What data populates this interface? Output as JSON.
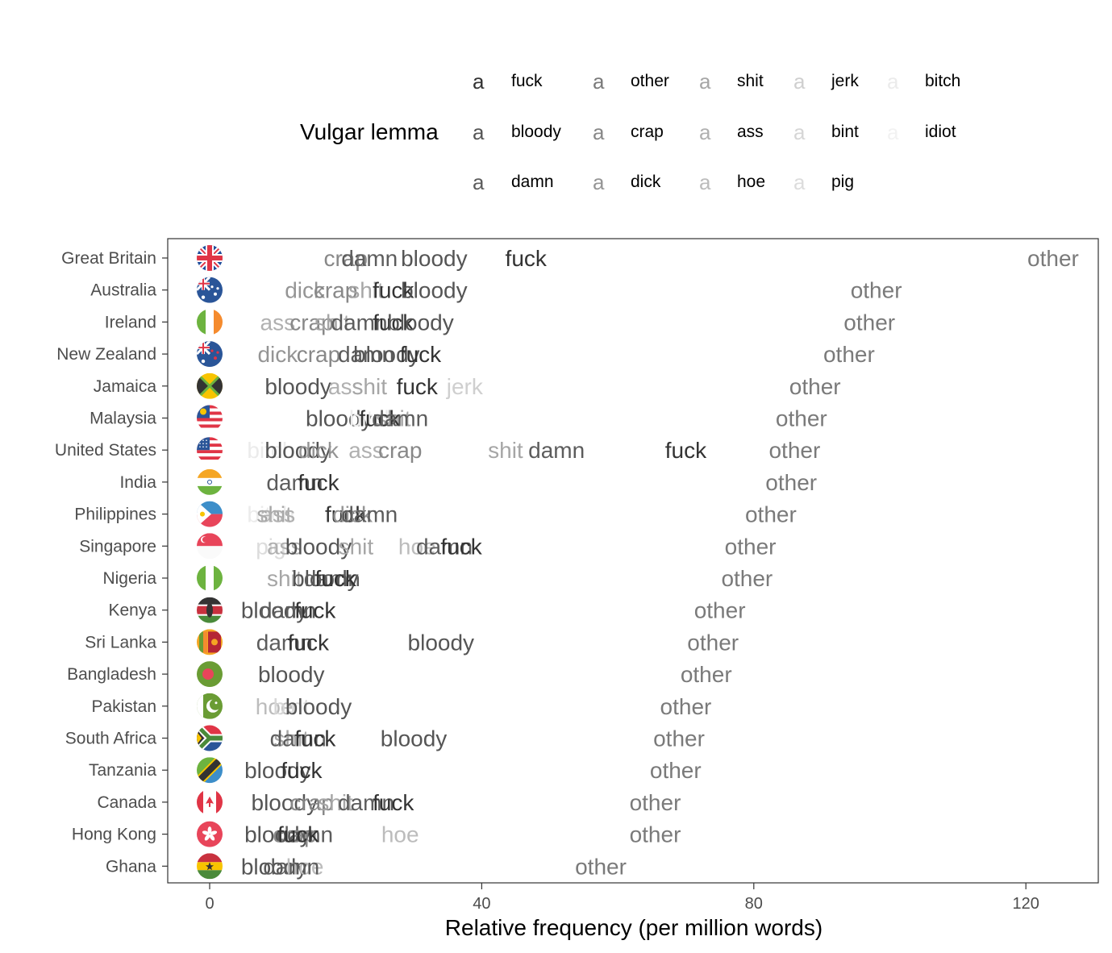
{
  "legend": {
    "title": "Vulgar lemma",
    "key_glyph": "a",
    "items": [
      {
        "label": "fuck",
        "color": "#333333"
      },
      {
        "label": "bloody",
        "color": "#555555"
      },
      {
        "label": "damn",
        "color": "#5c5c5c"
      },
      {
        "label": "other",
        "color": "#7a7a7a"
      },
      {
        "label": "crap",
        "color": "#888888"
      },
      {
        "label": "dick",
        "color": "#959595"
      },
      {
        "label": "shit",
        "color": "#a6a6a6"
      },
      {
        "label": "ass",
        "color": "#b0b0b0"
      },
      {
        "label": "hoe",
        "color": "#bcbcbc"
      },
      {
        "label": "jerk",
        "color": "#cfcfcf"
      },
      {
        "label": "bint",
        "color": "#d6d6d6"
      },
      {
        "label": "pig",
        "color": "#dcdcdc"
      },
      {
        "label": "bitch",
        "color": "#ebebeb"
      },
      {
        "label": "idiot",
        "color": "#f2f2f2"
      }
    ]
  },
  "chart_data": {
    "type": "scatter",
    "xlabel": "Relative frequency (per million words)",
    "ylabel": "",
    "xlim": [
      -6,
      131
    ],
    "xticks": [
      0,
      40,
      80,
      120
    ],
    "grid": false,
    "legend_position": "top",
    "countries": [
      {
        "name": "Great Britain",
        "flag": "gb",
        "points": [
          {
            "lemma": "crap",
            "x": 20
          },
          {
            "lemma": "damn",
            "x": 23.5
          },
          {
            "lemma": "bloody",
            "x": 33
          },
          {
            "lemma": "fuck",
            "x": 46.5
          },
          {
            "lemma": "other",
            "x": 124
          }
        ]
      },
      {
        "name": "Australia",
        "flag": "au",
        "points": [
          {
            "lemma": "dick",
            "x": 14
          },
          {
            "lemma": "crap",
            "x": 18.5
          },
          {
            "lemma": "shit",
            "x": 23
          },
          {
            "lemma": "fuck",
            "x": 27
          },
          {
            "lemma": "bloody",
            "x": 33
          },
          {
            "lemma": "other",
            "x": 98
          }
        ]
      },
      {
        "name": "Ireland",
        "flag": "ie",
        "points": [
          {
            "lemma": "ass",
            "x": 10
          },
          {
            "lemma": "crap",
            "x": 15
          },
          {
            "lemma": "shit",
            "x": 18
          },
          {
            "lemma": "damn",
            "x": 22
          },
          {
            "lemma": "fuck",
            "x": 27
          },
          {
            "lemma": "bloody",
            "x": 31
          },
          {
            "lemma": "other",
            "x": 97
          }
        ]
      },
      {
        "name": "New Zealand",
        "flag": "nz",
        "points": [
          {
            "lemma": "dick",
            "x": 10
          },
          {
            "lemma": "crap",
            "x": 16
          },
          {
            "lemma": "damn",
            "x": 23
          },
          {
            "lemma": "bloody",
            "x": 26
          },
          {
            "lemma": "fuck",
            "x": 31
          },
          {
            "lemma": "other",
            "x": 94
          }
        ]
      },
      {
        "name": "Jamaica",
        "flag": "jm",
        "points": [
          {
            "lemma": "bloody",
            "x": 13
          },
          {
            "lemma": "ass",
            "x": 20
          },
          {
            "lemma": "shit",
            "x": 23.5
          },
          {
            "lemma": "fuck",
            "x": 30.5
          },
          {
            "lemma": "jerk",
            "x": 37.5
          },
          {
            "lemma": "other",
            "x": 89
          }
        ]
      },
      {
        "name": "Malaysia",
        "flag": "my",
        "points": [
          {
            "lemma": "bloody",
            "x": 19
          },
          {
            "lemma": "bitch",
            "x": 24
          },
          {
            "lemma": "shit",
            "x": 27
          },
          {
            "lemma": "fuck",
            "x": 25
          },
          {
            "lemma": "damn",
            "x": 28
          },
          {
            "lemma": "other",
            "x": 87
          }
        ]
      },
      {
        "name": "United States",
        "flag": "us",
        "points": [
          {
            "lemma": "bitch",
            "x": 9
          },
          {
            "lemma": "bloody",
            "x": 13
          },
          {
            "lemma": "dick",
            "x": 16
          },
          {
            "lemma": "ass",
            "x": 23
          },
          {
            "lemma": "crap",
            "x": 28
          },
          {
            "lemma": "shit",
            "x": 43.5
          },
          {
            "lemma": "damn",
            "x": 51
          },
          {
            "lemma": "fuck",
            "x": 70
          },
          {
            "lemma": "other",
            "x": 86
          }
        ]
      },
      {
        "name": "India",
        "flag": "in",
        "points": [
          {
            "lemma": "damn",
            "x": 12.5
          },
          {
            "lemma": "fuck",
            "x": 16
          },
          {
            "lemma": "other",
            "x": 85.5
          }
        ]
      },
      {
        "name": "Philippines",
        "flag": "ph",
        "points": [
          {
            "lemma": "bitch",
            "x": 9
          },
          {
            "lemma": "shit",
            "x": 9.5
          },
          {
            "lemma": "ass",
            "x": 10
          },
          {
            "lemma": "fuck",
            "x": 20
          },
          {
            "lemma": "dick",
            "x": 21
          },
          {
            "lemma": "damn",
            "x": 23.5
          },
          {
            "lemma": "other",
            "x": 82.5
          }
        ]
      },
      {
        "name": "Singapore",
        "flag": "sg",
        "points": [
          {
            "lemma": "pig",
            "x": 9
          },
          {
            "lemma": "ass",
            "x": 11
          },
          {
            "lemma": "bloody",
            "x": 16
          },
          {
            "lemma": "shit",
            "x": 21.5
          },
          {
            "lemma": "hoe",
            "x": 30.5
          },
          {
            "lemma": "damn",
            "x": 34.5
          },
          {
            "lemma": "fuck",
            "x": 37
          },
          {
            "lemma": "other",
            "x": 79.5
          }
        ]
      },
      {
        "name": "Nigeria",
        "flag": "ng",
        "points": [
          {
            "lemma": "shit",
            "x": 11
          },
          {
            "lemma": "bloody",
            "x": 17
          },
          {
            "lemma": "damn",
            "x": 18
          },
          {
            "lemma": "fuck",
            "x": 18.5
          },
          {
            "lemma": "other",
            "x": 79
          }
        ]
      },
      {
        "name": "Kenya",
        "flag": "ke",
        "points": [
          {
            "lemma": "bloody",
            "x": 9.5
          },
          {
            "lemma": "damn",
            "x": 11.5
          },
          {
            "lemma": "fuck",
            "x": 15.5
          },
          {
            "lemma": "other",
            "x": 75
          }
        ]
      },
      {
        "name": "Sri Lanka",
        "flag": "lk",
        "points": [
          {
            "lemma": "damn",
            "x": 11
          },
          {
            "lemma": "fuck",
            "x": 14.5
          },
          {
            "lemma": "bloody",
            "x": 34
          },
          {
            "lemma": "other",
            "x": 74
          }
        ]
      },
      {
        "name": "Bangladesh",
        "flag": "bd",
        "points": [
          {
            "lemma": "bloody",
            "x": 12
          },
          {
            "lemma": "other",
            "x": 73
          }
        ]
      },
      {
        "name": "Pakistan",
        "flag": "pk",
        "points": [
          {
            "lemma": "hoe",
            "x": 9.5
          },
          {
            "lemma": "bint",
            "x": 12
          },
          {
            "lemma": "bloody",
            "x": 16
          },
          {
            "lemma": "other",
            "x": 70
          }
        ]
      },
      {
        "name": "South Africa",
        "flag": "za",
        "points": [
          {
            "lemma": "shit",
            "x": 12
          },
          {
            "lemma": "damn",
            "x": 13
          },
          {
            "lemma": "fuck",
            "x": 15.5
          },
          {
            "lemma": "bloody",
            "x": 30
          },
          {
            "lemma": "other",
            "x": 69
          }
        ]
      },
      {
        "name": "Tanzania",
        "flag": "tz",
        "points": [
          {
            "lemma": "bloody",
            "x": 10
          },
          {
            "lemma": "fuck",
            "x": 13.5
          },
          {
            "lemma": "other",
            "x": 68.5
          }
        ]
      },
      {
        "name": "Canada",
        "flag": "ca",
        "points": [
          {
            "lemma": "bloody",
            "x": 11
          },
          {
            "lemma": "crap",
            "x": 15
          },
          {
            "lemma": "shit",
            "x": 18.5
          },
          {
            "lemma": "damn",
            "x": 23
          },
          {
            "lemma": "fuck",
            "x": 27
          },
          {
            "lemma": "other",
            "x": 65.5
          }
        ]
      },
      {
        "name": "Hong Kong",
        "flag": "hk",
        "points": [
          {
            "lemma": "bloody",
            "x": 10
          },
          {
            "lemma": "damn",
            "x": 14
          },
          {
            "lemma": "crap",
            "x": 12.5
          },
          {
            "lemma": "fuck",
            "x": 13
          },
          {
            "lemma": "hoe",
            "x": 28
          },
          {
            "lemma": "other",
            "x": 65.5
          }
        ]
      },
      {
        "name": "Ghana",
        "flag": "gh",
        "points": [
          {
            "lemma": "bloody",
            "x": 9.5
          },
          {
            "lemma": "hoe",
            "x": 14
          },
          {
            "lemma": "damn",
            "x": 12
          },
          {
            "lemma": "other",
            "x": 57.5
          }
        ]
      }
    ]
  }
}
